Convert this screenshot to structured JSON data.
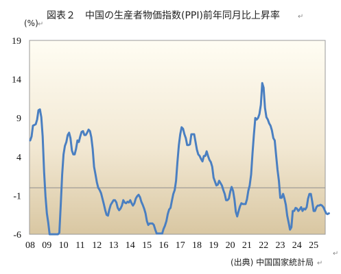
{
  "chart_data": {
    "type": "line",
    "title": "図表２　中国の生産者物価指数(PPI)前年同月比上昇率",
    "ylabel": "(%)",
    "source": "(出典) 中国国家統計局",
    "ylim": [
      -6,
      19
    ],
    "yticks": [
      19,
      14,
      9,
      4,
      -1,
      -6
    ],
    "xticks": [
      "08",
      "09",
      "10",
      "11",
      "12",
      "13",
      "14",
      "15",
      "16",
      "17",
      "18",
      "19",
      "20",
      "21",
      "22",
      "23",
      "24",
      "25"
    ],
    "x_start_year": 2008,
    "reference_line": 0,
    "grid": false,
    "colors": {
      "line": "#4a7fc1",
      "zero_line": "#8c8c8c",
      "bg_top": "#fffdf3",
      "bg_bottom": "#d9c7a2",
      "frame": "#999999"
    },
    "series": [
      {
        "values": [
          6.1,
          6.6,
          8.0,
          8.1,
          8.2,
          8.8,
          10.0,
          10.1,
          9.1,
          6.6,
          2.0,
          -1.1,
          -3.3,
          -4.5,
          -6.0,
          -6.6,
          -7.2,
          -7.8,
          -8.2,
          -7.9,
          -7.0,
          -5.8,
          -2.1,
          1.7,
          4.3,
          5.4,
          5.9,
          6.8,
          7.1,
          6.4,
          4.8,
          4.3,
          4.3,
          5.0,
          6.1,
          5.9,
          6.6,
          7.2,
          7.3,
          6.8,
          6.8,
          7.1,
          7.5,
          7.3,
          6.5,
          5.0,
          2.7,
          1.7,
          0.7,
          0.0,
          -0.3,
          -0.7,
          -1.4,
          -2.1,
          -2.9,
          -3.5,
          -3.6,
          -2.8,
          -2.2,
          -1.9,
          -1.6,
          -1.6,
          -1.9,
          -2.6,
          -2.9,
          -2.7,
          -2.3,
          -1.6,
          -1.9,
          -2.0,
          -1.8,
          -1.9,
          -1.6,
          -2.0,
          -2.3,
          -2.0,
          -1.4,
          -1.1,
          -0.9,
          -1.2,
          -1.8,
          -2.2,
          -2.7,
          -3.3,
          -4.3,
          -4.8,
          -4.6,
          -4.6,
          -4.6,
          -4.8,
          -5.4,
          -5.9,
          -5.9,
          -5.9,
          -5.9,
          -5.9,
          -5.3,
          -4.9,
          -4.3,
          -3.4,
          -2.8,
          -2.6,
          -1.7,
          -0.8,
          -0.3,
          0.9,
          3.3,
          5.5,
          6.9,
          7.8,
          7.6,
          6.9,
          6.4,
          5.5,
          5.5,
          5.6,
          6.9,
          6.9,
          6.9,
          5.9,
          4.9,
          4.3,
          4.1,
          3.7,
          3.4,
          4.1,
          4.1,
          4.7,
          4.1,
          3.6,
          3.3,
          2.7,
          1.3,
          0.8,
          0.3,
          0.4,
          0.9,
          0.6,
          0.3,
          -0.3,
          -0.8,
          -1.6,
          -1.6,
          -1.4,
          -0.5,
          0.1,
          -0.4,
          -1.5,
          -3.1,
          -3.7,
          -3.0,
          -2.4,
          -2.0,
          -2.1,
          -2.1,
          -2.1,
          -1.5,
          -0.4,
          0.3,
          1.7,
          4.4,
          6.8,
          9.0,
          8.8,
          9.0,
          9.5,
          10.7,
          13.5,
          12.9,
          10.3,
          9.1,
          8.8,
          8.3,
          8.0,
          7.4,
          6.4,
          6.1,
          4.2,
          2.3,
          0.9,
          -1.3,
          -1.3,
          -0.8,
          -1.4,
          -2.2,
          -3.6,
          -4.5,
          -5.4,
          -5.1,
          -3.0,
          -3.0,
          -2.6,
          -2.7,
          -3.0,
          -2.8,
          -2.5,
          -3.0,
          -2.7,
          -2.8,
          -2.5,
          -1.4,
          -0.8,
          -0.8,
          -1.8,
          -3.0,
          -3.0,
          -2.5,
          -2.3,
          -2.3,
          -2.2,
          -2.3,
          -2.5,
          -2.9,
          -3.3,
          -3.4,
          -3.3
        ]
      }
    ]
  }
}
